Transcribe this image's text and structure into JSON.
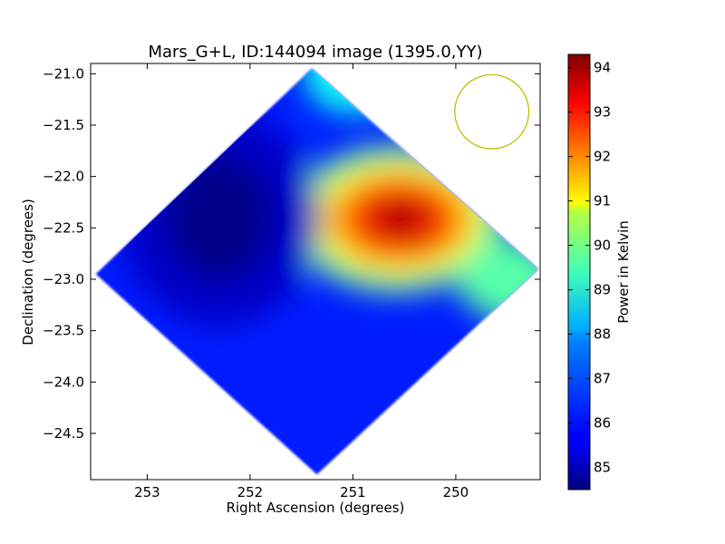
{
  "chart_data": {
    "type": "heatmap",
    "title": "Mars_G+L, ID:144094 image (1395.0,YY)",
    "xlabel": "Right Ascension (degrees)",
    "ylabel": "Declination (degrees)",
    "colorbar_label": "Power in Kelvin",
    "x_reversed": true,
    "xlim": [
      253.55,
      249.18
    ],
    "ylim": [
      -24.95,
      -20.9
    ],
    "x_ticks": [
      253,
      252,
      251,
      250
    ],
    "x_tick_labels": [
      "253",
      "252",
      "251",
      "250"
    ],
    "y_ticks": [
      -21.0,
      -21.5,
      -22.0,
      -22.5,
      -23.0,
      -23.5,
      -24.0,
      -24.5
    ],
    "y_tick_labels": [
      "−21.0",
      "−21.5",
      "−22.0",
      "−22.5",
      "−23.0",
      "−23.5",
      "−24.0",
      "−24.5"
    ],
    "colorbar_range": [
      84.5,
      94.3
    ],
    "colorbar_ticks": [
      85,
      86,
      87,
      88,
      89,
      90,
      91,
      92,
      93,
      94
    ],
    "colorbar_tick_labels": [
      "85",
      "86",
      "87",
      "88",
      "89",
      "90",
      "91",
      "92",
      "93",
      "94"
    ],
    "colormap": "jet",
    "map_footprint_corners": [
      {
        "ra": 251.4,
        "dec": -20.95
      },
      {
        "ra": 249.2,
        "dec": -22.9
      },
      {
        "ra": 251.35,
        "dec": -24.9
      },
      {
        "ra": 253.5,
        "dec": -22.95
      }
    ],
    "features": [
      {
        "kind": "background",
        "value": 86.0
      },
      {
        "kind": "hotspot",
        "ra": 250.55,
        "dec": -22.45,
        "peak": 94.0,
        "note": "brightest region"
      },
      {
        "kind": "cold",
        "ra": 252.3,
        "dec": -22.4,
        "value": 84.6
      },
      {
        "kind": "warm",
        "ra": 251.0,
        "dec": -21.0,
        "value": 88.3
      },
      {
        "kind": "warm",
        "ra": 249.5,
        "dec": -23.0,
        "value": 89.0
      }
    ],
    "beam_circle": {
      "ra": 249.65,
      "dec": -21.37,
      "radius_deg": 0.36,
      "color": "#bfbf00"
    }
  },
  "colors": {
    "axis": "#000000",
    "background": "#ffffff",
    "beam": "#bfbf00"
  }
}
